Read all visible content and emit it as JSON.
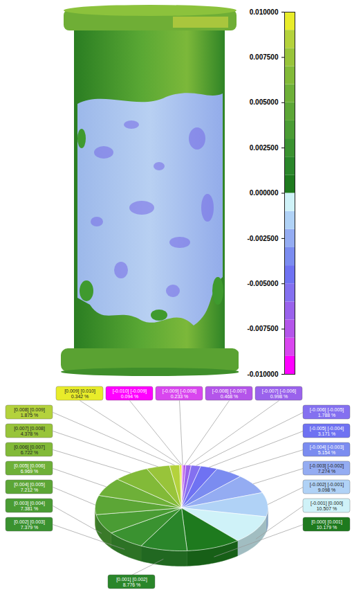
{
  "chart_data": [
    {
      "type": "surface",
      "color_bar": {
        "range": [
          -0.01,
          0.01
        ],
        "ticks": [
          {
            "value": 0.01,
            "label": "0.010000"
          },
          {
            "value": 0.0075,
            "label": "0.007500"
          },
          {
            "value": 0.005,
            "label": "0.005000"
          },
          {
            "value": 0.0025,
            "label": "0.002500"
          },
          {
            "value": 0,
            "label": "0.000000"
          },
          {
            "value": -0.0025,
            "label": "-0.002500"
          },
          {
            "value": -0.005,
            "label": "-0.005000"
          },
          {
            "value": -0.0075,
            "label": "-0.007500"
          },
          {
            "value": -0.01,
            "label": "-0.010000"
          }
        ],
        "bins": [
          -0.01,
          -0.009,
          -0.008,
          -0.007,
          -0.006,
          -0.005,
          -0.004,
          -0.003,
          -0.002,
          -0.001,
          0,
          0.001,
          0.002,
          0.003,
          0.004,
          0.005,
          0.006,
          0.007,
          0.008,
          0.009,
          0.01
        ],
        "colors": [
          "#ff00ff",
          "#d946ef",
          "#b455ea",
          "#9a62ec",
          "#8470f0",
          "#6f72f2",
          "#7b8cf0",
          "#94acf2",
          "#b0d2f6",
          "#cff2f8",
          "#1e7a1e",
          "#2a862a",
          "#3a9230",
          "#4a9c34",
          "#5ca636",
          "#6eb038",
          "#82ba38",
          "#98c43a",
          "#b4d23c",
          "#e8ec2a"
        ]
      }
    },
    {
      "type": "pie",
      "categories": [
        "[-0.010] [-0.009]",
        "[-0.009] [-0.008]",
        "[-0.008] [-0.007]",
        "[-0.007] [-0.006]",
        "[-0.006] [-0.005]",
        "[-0.005] [-0.004]",
        "[-0.004] [-0.003]",
        "[-0.003] [-0.002]",
        "[-0.002] [-0.001]",
        "[-0.001] [0.000]",
        "[0.000] [0.001]",
        "[0.001] [0.002]",
        "[0.002] [0.003]",
        "[0.003] [0.004]",
        "[0.004] [0.005]",
        "[0.005] [0.006]",
        "[0.006] [0.007]",
        "[0.007] [0.008]",
        "[0.008] [0.009]",
        "[0.009] [0.010]"
      ],
      "values": [
        0.094,
        0.233,
        0.468,
        0.998,
        1.788,
        3.171,
        5.154,
        7.274,
        9.098,
        10.507,
        10.179,
        8.776,
        7.379,
        7.381,
        7.212,
        6.969,
        6.722,
        4.378,
        1.875,
        0.342
      ],
      "value_labels": [
        "0.094 %",
        "0.233 %",
        "0.468 %",
        "0.998 %",
        "1.788 %",
        "3.171 %",
        "5.154 %",
        "7.274 %",
        "9.098 %",
        "10.507 %",
        "10.179 %",
        "8.776 %",
        "7.379 %",
        "7.381 %",
        "7.212 %",
        "6.969 %",
        "6.722 %",
        "4.378 %",
        "1.875 %",
        "0.342 %"
      ],
      "colors": [
        "#ff00ff",
        "#d946ef",
        "#b455ea",
        "#9a62ec",
        "#8470f0",
        "#6f72f2",
        "#7b8cf0",
        "#94acf2",
        "#b0d2f6",
        "#cff2f8",
        "#1e7a1e",
        "#2a862a",
        "#3a9230",
        "#4a9c34",
        "#5ca636",
        "#6eb038",
        "#82ba38",
        "#98c43a",
        "#b4d23c",
        "#e8ec2a"
      ],
      "data_labels": true
    }
  ]
}
